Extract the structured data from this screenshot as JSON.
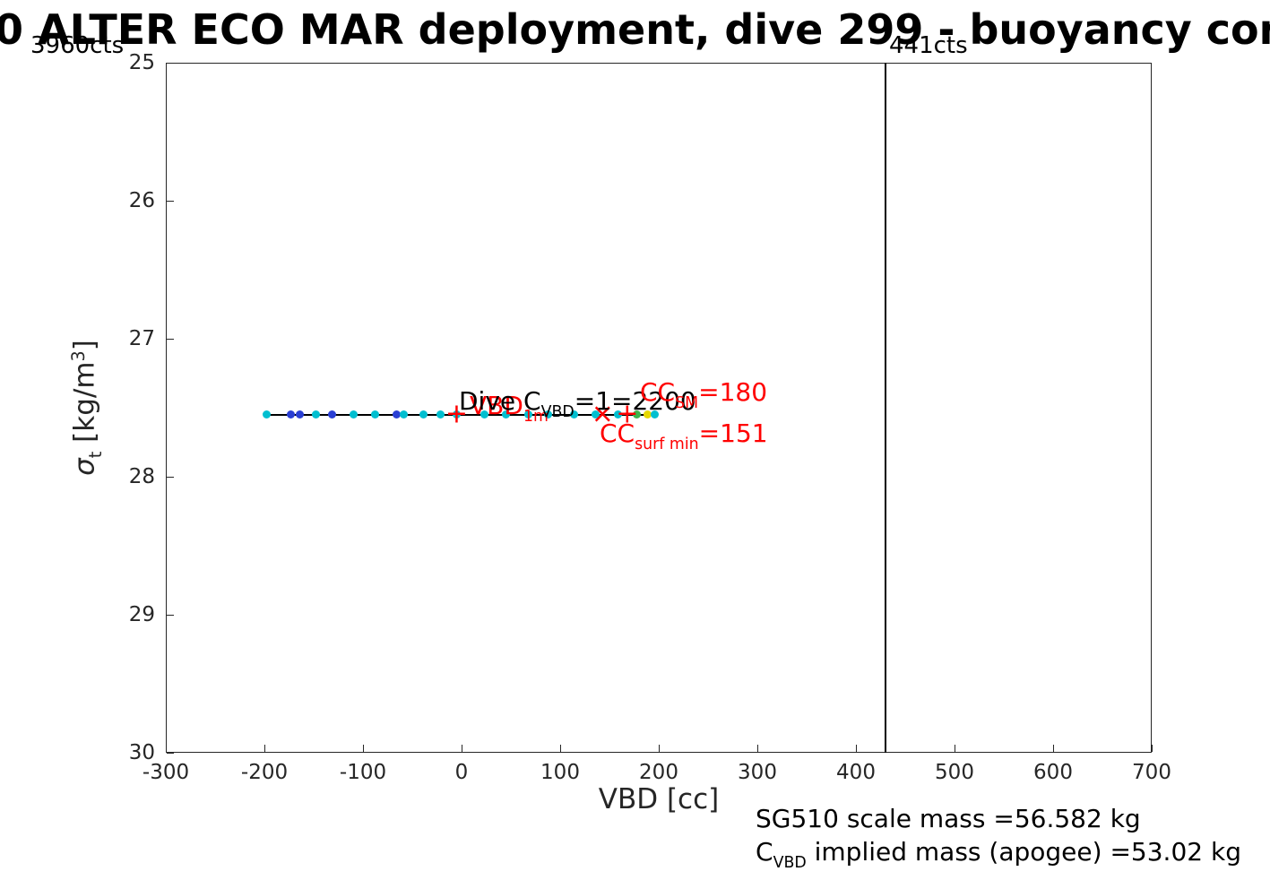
{
  "figure": {
    "title": "0 ALTER ECO MAR deployment, dive 299 - buoyancy con"
  },
  "axes": {
    "xlabel": "VBD [cc]",
    "ylabel": {
      "symbol": "σ",
      "sub": "t",
      "rest": " [kg/m",
      "sup": "3",
      "close": "]"
    }
  },
  "annotations": {
    "vbd_max_counts": "3960cts",
    "vbd_min_counts": "441cts",
    "dive_cvbd": {
      "pre": "Dive C",
      "sub": "VBD",
      "post": "=1=2200"
    },
    "vbd_1m": {
      "pre": "VBD",
      "sub": "1m",
      "post": ""
    },
    "cc_sm": {
      "pre": "CC",
      "sub": "SM",
      "post": "=180"
    },
    "cc_surf_min": {
      "pre": "CC",
      "sub": "surf min",
      "post": "=151"
    }
  },
  "footer": {
    "line1": "SG510 scale mass =56.582 kg",
    "line2_pre": "C",
    "line2_sub": "VBD",
    "line2_post": " implied mass (apogee) =53.02 kg"
  },
  "chart_data": {
    "type": "scatter",
    "title": "0 ALTER ECO MAR deployment, dive 299 - buoyancy con",
    "xlabel": "VBD [cc]",
    "ylabel": "sigma_t [kg/m^3]",
    "xlim": [
      -300,
      700
    ],
    "ylim": [
      25,
      30
    ],
    "y_axis_reversed": true,
    "grid": false,
    "x_ticks": [
      -300,
      -200,
      -100,
      0,
      100,
      200,
      300,
      400,
      500,
      600,
      700
    ],
    "y_ticks": [
      25,
      26,
      27,
      28,
      29,
      30
    ],
    "points": [
      {
        "x": -198,
        "y": 27.55,
        "color": "#00bfd0"
      },
      {
        "x": -173,
        "y": 27.55,
        "color": "#2a3fd4"
      },
      {
        "x": -164,
        "y": 27.55,
        "color": "#2a3fd4"
      },
      {
        "x": -148,
        "y": 27.55,
        "color": "#00bfd0"
      },
      {
        "x": -131,
        "y": 27.55,
        "color": "#2a3fd4"
      },
      {
        "x": -110,
        "y": 27.55,
        "color": "#00bfd0"
      },
      {
        "x": -88,
        "y": 27.55,
        "color": "#00bfd0"
      },
      {
        "x": -66,
        "y": 27.55,
        "color": "#2a3fd4"
      },
      {
        "x": -59,
        "y": 27.55,
        "color": "#00bfd0"
      },
      {
        "x": -39,
        "y": 27.55,
        "color": "#00bfd0"
      },
      {
        "x": -21,
        "y": 27.55,
        "color": "#00bfd0"
      },
      {
        "x": -5,
        "y": 27.55,
        "color": "#00bfd0"
      },
      {
        "x": 23,
        "y": 27.55,
        "color": "#00bfd0"
      },
      {
        "x": 45,
        "y": 27.55,
        "color": "#00bfd0"
      },
      {
        "x": 68,
        "y": 27.55,
        "color": "#00bfd0"
      },
      {
        "x": 88,
        "y": 27.55,
        "color": "#00bfd0"
      },
      {
        "x": 114,
        "y": 27.55,
        "color": "#00bfd0"
      },
      {
        "x": 136,
        "y": 27.55,
        "color": "#00bfd0"
      },
      {
        "x": 159,
        "y": 27.55,
        "color": "#00bfd0"
      },
      {
        "x": 178,
        "y": 27.55,
        "color": "#3cb44b"
      },
      {
        "x": 189,
        "y": 27.55,
        "color": "#e6d800"
      },
      {
        "x": 196,
        "y": 27.55,
        "color": "#00bfd0"
      }
    ],
    "data_line": {
      "x1": -198,
      "x2": 196,
      "y": 27.55,
      "color": "#000000"
    },
    "vertical_line": {
      "x": 430,
      "color": "#000000",
      "label": "441cts"
    },
    "red_markers": [
      {
        "type": "+",
        "x": -5,
        "y": 27.55
      },
      {
        "type": "×",
        "x": 143,
        "y": 27.55
      },
      {
        "type": "+",
        "x": 168,
        "y": 27.55
      }
    ],
    "counts_labels": [
      {
        "text": "3960cts",
        "position": "top-left"
      },
      {
        "text": "441cts",
        "position": "top-of-vertical-line"
      }
    ]
  }
}
